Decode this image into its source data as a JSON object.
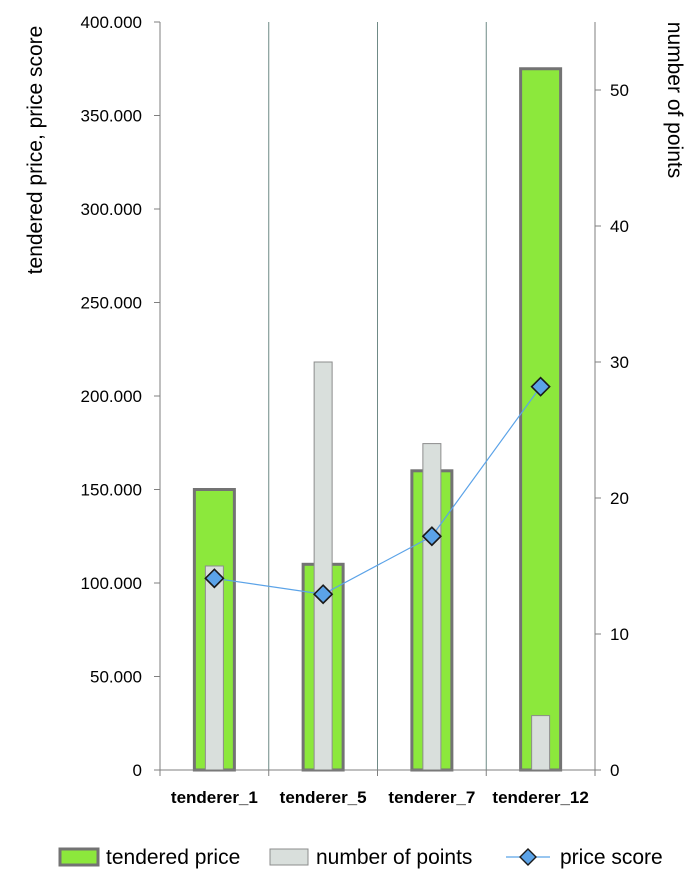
{
  "chart_data": {
    "type": "bar",
    "categories": [
      "tenderer_1",
      "tenderer_5",
      "tenderer_7",
      "tenderer_12"
    ],
    "series": [
      {
        "name": "tendered price",
        "axis": "left",
        "kind": "bar",
        "color": "#8ce83c",
        "values": [
          150000,
          110000,
          160000,
          375000
        ]
      },
      {
        "name": "number of points",
        "axis": "right",
        "kind": "bar",
        "color": "#d9dfdc",
        "values": [
          15,
          30,
          24,
          4
        ]
      },
      {
        "name": "price score",
        "axis": "left",
        "kind": "line",
        "color": "#5ba3e8",
        "values": [
          102500,
          94000,
          125000,
          205000
        ]
      }
    ],
    "ylabel": "tendered price, price score",
    "y2label": "number of points",
    "ylim": [
      0,
      400000
    ],
    "y2lim": [
      0,
      55
    ],
    "yticks": [
      0,
      50000,
      100000,
      150000,
      200000,
      250000,
      300000,
      350000,
      400000
    ],
    "ytick_labels": [
      "0",
      "50.000",
      "100.000",
      "150.000",
      "200.000",
      "250.000",
      "300.000",
      "350.000",
      "400.000"
    ],
    "y2ticks": [
      0,
      10,
      20,
      30,
      40,
      50
    ],
    "y2tick_labels": [
      "0",
      "10",
      "20",
      "30",
      "40",
      "50"
    ],
    "grid": "vertical category separators",
    "legend": "bottom"
  }
}
